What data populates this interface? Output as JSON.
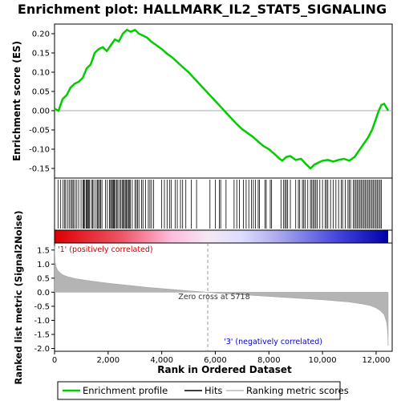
{
  "chart_data": {
    "type": "line",
    "title": "Enrichment plot: HALLMARK_IL2_STAT5_SIGNALING",
    "top_panel": {
      "ylabel": "Enrichment score (ES)",
      "ylim": [
        -0.175,
        0.225
      ],
      "yticks": [
        -0.15,
        -0.1,
        -0.05,
        0.0,
        0.05,
        0.1,
        0.15,
        0.2
      ],
      "ytick_labels": [
        "-0.15",
        "-0.10",
        "-0.05",
        "0.00",
        "0.05",
        "0.10",
        "0.15",
        "0.20"
      ],
      "series": [
        {
          "name": "Enrichment profile",
          "color": "#00cc00",
          "x": [
            0,
            150,
            300,
            450,
            600,
            750,
            900,
            1050,
            1200,
            1350,
            1500,
            1650,
            1800,
            1950,
            2100,
            2250,
            2400,
            2550,
            2700,
            2850,
            3000,
            3150,
            3300,
            3450,
            3600,
            3800,
            4000,
            4200,
            4400,
            4600,
            4800,
            5000,
            5200,
            5400,
            5600,
            5800,
            6000,
            6200,
            6400,
            6600,
            6800,
            7000,
            7200,
            7400,
            7600,
            7800,
            8000,
            8200,
            8400,
            8500,
            8650,
            8800,
            9000,
            9200,
            9400,
            9550,
            9700,
            9850,
            10000,
            10200,
            10400,
            10600,
            10800,
            11000,
            11200,
            11400,
            11550,
            11700,
            11850,
            12000,
            12100,
            12200,
            12300,
            12450
          ],
          "values": [
            0.005,
            0.0,
            0.03,
            0.04,
            0.06,
            0.07,
            0.075,
            0.085,
            0.11,
            0.12,
            0.15,
            0.16,
            0.165,
            0.155,
            0.17,
            0.185,
            0.18,
            0.2,
            0.21,
            0.205,
            0.21,
            0.2,
            0.195,
            0.19,
            0.18,
            0.17,
            0.16,
            0.148,
            0.138,
            0.125,
            0.112,
            0.1,
            0.085,
            0.07,
            0.055,
            0.04,
            0.025,
            0.01,
            -0.005,
            -0.02,
            -0.035,
            -0.048,
            -0.058,
            -0.068,
            -0.08,
            -0.092,
            -0.1,
            -0.112,
            -0.125,
            -0.13,
            -0.12,
            -0.118,
            -0.128,
            -0.125,
            -0.14,
            -0.15,
            -0.14,
            -0.135,
            -0.13,
            -0.128,
            -0.132,
            -0.128,
            -0.125,
            -0.13,
            -0.12,
            -0.1,
            -0.085,
            -0.07,
            -0.05,
            -0.02,
            0.0,
            0.015,
            0.018,
            0.0
          ]
        }
      ]
    },
    "hits_panel": {
      "legend_name": "Hits",
      "hit_ranks": [
        130,
        230,
        320,
        380,
        420,
        500,
        560,
        620,
        660,
        700,
        760,
        830,
        900,
        990,
        1060,
        1090,
        1130,
        1180,
        1210,
        1250,
        1280,
        1310,
        1380,
        1420,
        1470,
        1550,
        1600,
        1640,
        1680,
        1720,
        1770,
        1900,
        1970,
        2050,
        2090,
        2130,
        2160,
        2200,
        2230,
        2270,
        2320,
        2360,
        2420,
        2470,
        2520,
        2560,
        2600,
        2640,
        2680,
        2720,
        2760,
        2790,
        2830,
        2900,
        3000,
        3050,
        3100,
        3150,
        3250,
        3300,
        3400,
        3500,
        3560,
        3620,
        3700,
        4000,
        4100,
        4200,
        4300,
        4360,
        4500,
        4580,
        4700,
        4780,
        4900,
        5100,
        5300,
        5800,
        6000,
        6150,
        6200,
        6400,
        6700,
        6800,
        6900,
        7050,
        7150,
        7250,
        7350,
        7420,
        7500,
        7600,
        7650,
        7850,
        7900,
        8050,
        8100,
        8450,
        8550,
        8600,
        8650,
        8700,
        8800,
        9000,
        9100,
        9150,
        9250,
        9300,
        9350,
        9450,
        9550,
        9600,
        9650,
        9700,
        9750,
        9800,
        9900,
        10000,
        10100,
        10150,
        10200,
        10300,
        10400,
        10500,
        10600,
        10700,
        10750,
        10850,
        10950,
        11000,
        11050,
        11150,
        11200,
        11250,
        11300,
        11350,
        11400,
        11450,
        11500,
        11550,
        11600,
        11650,
        11700,
        11750,
        11800,
        11850,
        11900,
        11950,
        12000,
        12050,
        12100,
        12150,
        12200
      ]
    },
    "ranked_panel": {
      "ylabel": "Ranked list metric (Signal2Noise)",
      "xlabel": "Rank in Ordered Dataset",
      "legend_name": "Ranking metric scores",
      "ylim": [
        -2.1,
        1.75
      ],
      "yticks": [
        -2.0,
        -1.5,
        -1.0,
        -0.5,
        0.0,
        0.5,
        1.0,
        1.5
      ],
      "ytick_labels": [
        "-2.0",
        "-1.5",
        "-1.0",
        "-0.5",
        "0.0",
        "0.5",
        "1.0",
        "1.5"
      ],
      "xlim": [
        0,
        12600
      ],
      "xticks": [
        0,
        2000,
        4000,
        6000,
        8000,
        10000,
        12000
      ],
      "xtick_labels": [
        "0",
        "2,000",
        "4,000",
        "6,000",
        "8,000",
        "10,000",
        "12,000"
      ],
      "metric_x": [
        0,
        20,
        60,
        120,
        200,
        300,
        500,
        800,
        1200,
        1600,
        2000,
        2500,
        3000,
        3500,
        4000,
        4500,
        5000,
        5500,
        5718,
        6000,
        6500,
        7000,
        7500,
        8000,
        8500,
        9000,
        9500,
        10000,
        10500,
        11000,
        11500,
        11800,
        12000,
        12150,
        12300,
        12400,
        12430,
        12450
      ],
      "metric_values": [
        1.65,
        1.1,
        0.9,
        0.78,
        0.7,
        0.62,
        0.55,
        0.48,
        0.42,
        0.37,
        0.32,
        0.27,
        0.22,
        0.17,
        0.13,
        0.09,
        0.05,
        0.015,
        0.0,
        -0.03,
        -0.06,
        -0.09,
        -0.12,
        -0.15,
        -0.18,
        -0.21,
        -0.24,
        -0.27,
        -0.31,
        -0.35,
        -0.42,
        -0.48,
        -0.56,
        -0.65,
        -0.8,
        -1.1,
        -1.4,
        -1.9
      ],
      "zero_cross_label": "Zero cross at 5718",
      "zero_cross_rank": 5718,
      "pos_label": "'1' (positively correlated)",
      "neg_label": "'3' (negatively correlated)",
      "pos_color": "#cc0000",
      "neg_color": "#0000cc"
    },
    "total_ranks": 12450,
    "legend": {
      "placement": "bottom",
      "entries": [
        {
          "name": "Enrichment profile",
          "color": "#00cc00"
        },
        {
          "name": "Hits",
          "color": "#000000"
        },
        {
          "name": "Ranking metric scores",
          "color": "#bbbbbb"
        }
      ]
    }
  }
}
